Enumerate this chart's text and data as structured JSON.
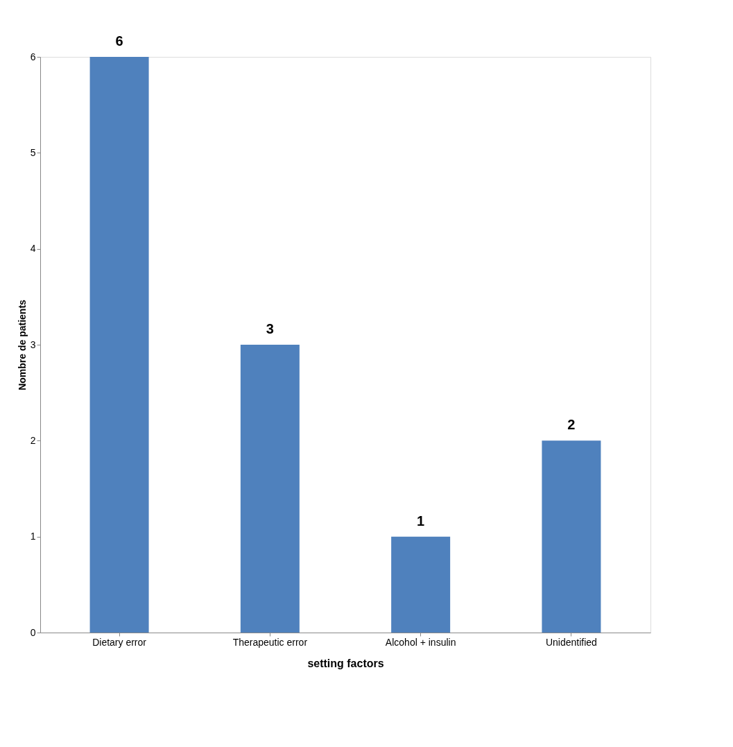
{
  "chart_data": {
    "type": "bar",
    "xlabel": "setting factors",
    "ylabel": "Nombre de patients",
    "categories": [
      "Dietary error",
      "Therapeutic error",
      "Alcohol + insulin",
      "Unidentified"
    ],
    "values": [
      6,
      3,
      1,
      2
    ],
    "color": "#4f81bd",
    "ylim": [
      0,
      6
    ],
    "yticks": [
      0,
      1,
      2,
      3,
      4,
      5,
      6
    ],
    "grid": false,
    "data_labels": true
  }
}
